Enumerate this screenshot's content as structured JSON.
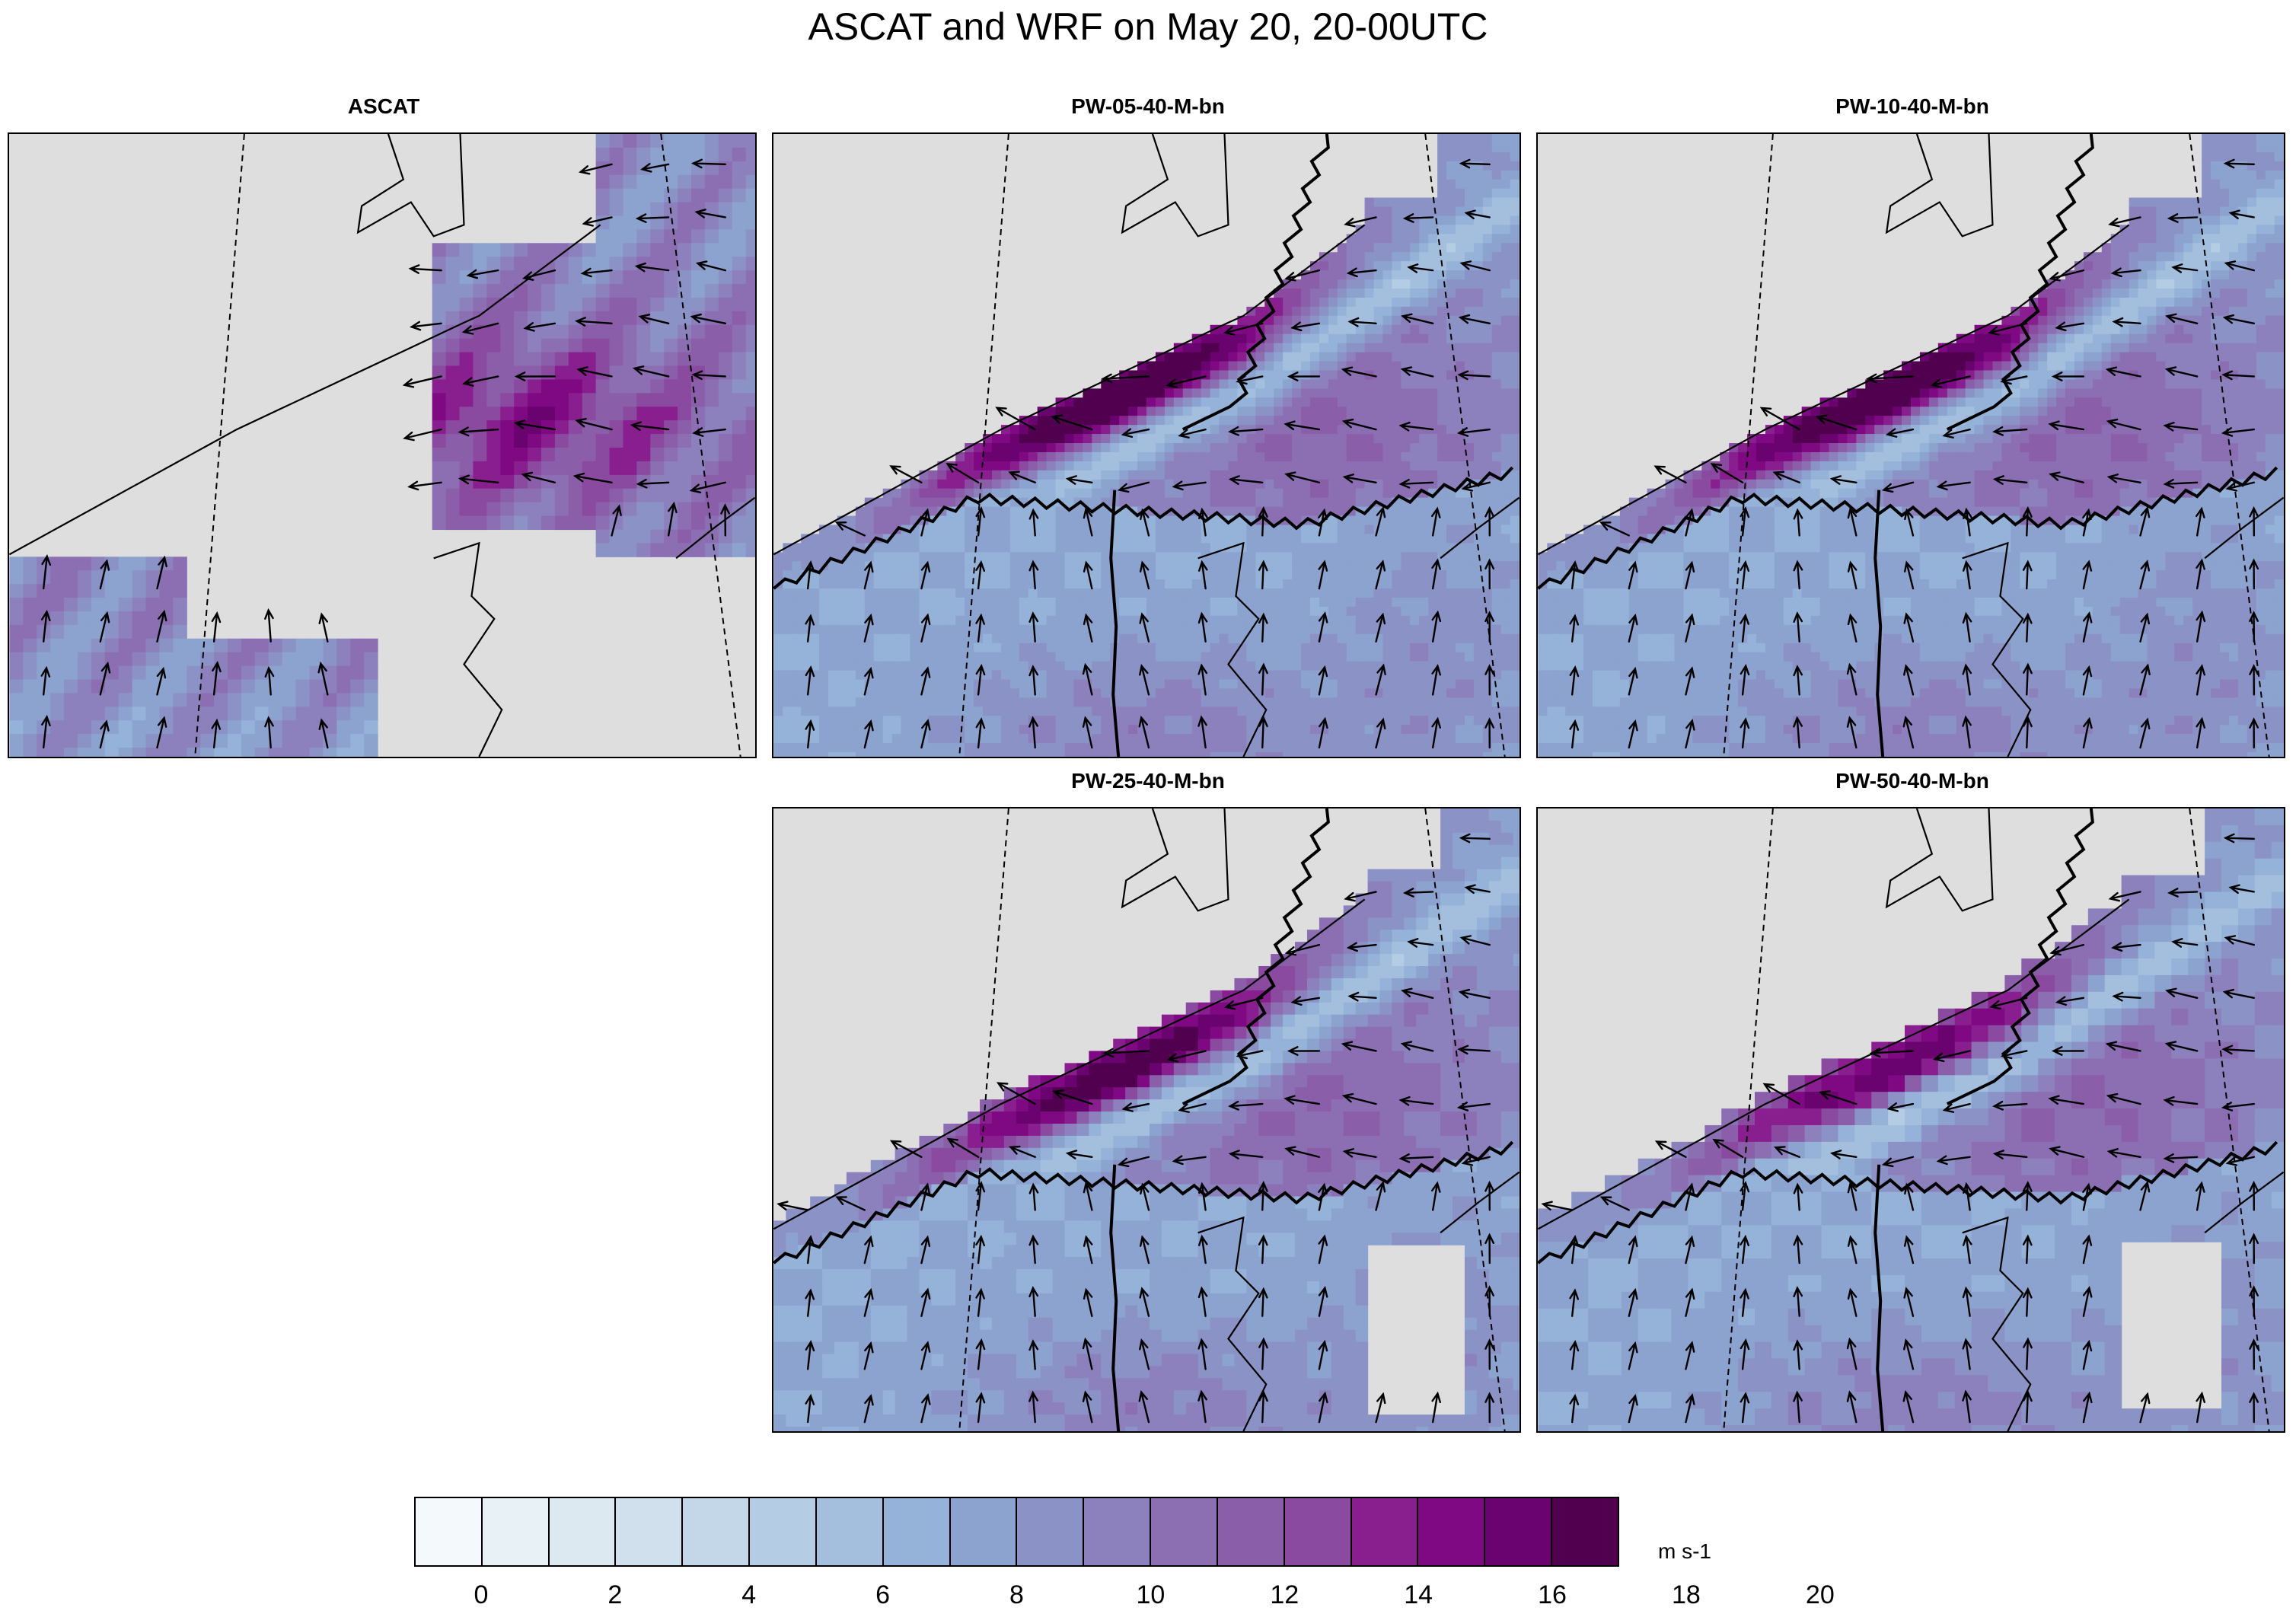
{
  "title": "ASCAT and WRF on May 20, 20-00UTC",
  "panels": [
    {
      "label": "ASCAT",
      "kind": "obs"
    },
    {
      "label": "PW-05-40-M-bn",
      "kind": "model",
      "intensity": 1.0,
      "coarse": 0
    },
    {
      "label": "PW-10-40-M-bn",
      "kind": "model",
      "intensity": 0.97,
      "coarse": 0
    },
    {
      "label": "PW-25-40-M-bn",
      "kind": "model",
      "intensity": 0.9,
      "coarse": 1
    },
    {
      "label": "PW-50-40-M-bn",
      "kind": "model",
      "intensity": 0.75,
      "coarse": 2
    }
  ],
  "colorbar": {
    "colors": [
      "#f4fafb",
      "#e8f1f5",
      "#dde9f1",
      "#d0e1ed",
      "#c3d7e9",
      "#b4cce4",
      "#a4bfde",
      "#95b2d8",
      "#8ca2cf",
      "#8b92c6",
      "#8c81bd",
      "#8c6fb3",
      "#8b5ea9",
      "#8a4aa0",
      "#891e8f",
      "#7f0982",
      "#6a0270",
      "#510050"
    ],
    "tick_labels": [
      "0",
      "2",
      "4",
      "6",
      "8",
      "10",
      "12",
      "14",
      "16",
      "18",
      "20"
    ],
    "units": "m s-1",
    "min": -1,
    "max": 21,
    "step": 1
  }
}
